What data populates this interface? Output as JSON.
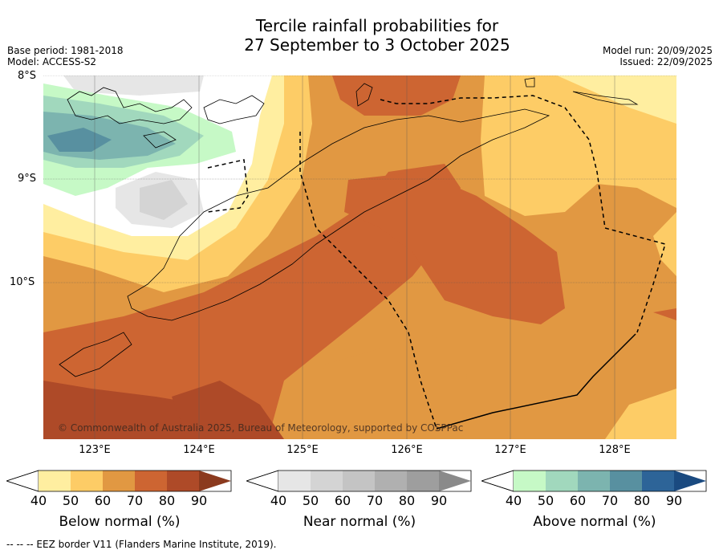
{
  "title": {
    "line1": "Tercile rainfall probabilities for",
    "line2": "27 September to 3 October 2025"
  },
  "meta": {
    "base_period": "Base period: 1981-2018",
    "model": "Model: ACCESS-S2",
    "model_run": "Model run: 20/09/2025",
    "issued": "Issued: 22/09/2025"
  },
  "map": {
    "lat_labels": [
      "8°S",
      "9°S",
      "10°S"
    ],
    "lon_labels": [
      "123°E",
      "124°E",
      "125°E",
      "126°E",
      "127°E",
      "128°E"
    ],
    "copyright": "© Commonwealth of Australia 2025, Bureau of Meteorology, supported by COSPPac"
  },
  "colorbars": {
    "tick_labels": [
      "40",
      "50",
      "60",
      "70",
      "80",
      "90"
    ],
    "below": {
      "title": "Below normal (%)",
      "colors": [
        "#ffeea0",
        "#fdcc66",
        "#e19842",
        "#cd6532",
        "#ae4a28",
        "#8b3a1e"
      ]
    },
    "near": {
      "title": "Near normal (%)",
      "colors": [
        "#e6e6e6",
        "#d4d4d4",
        "#c4c4c4",
        "#b0b0b0",
        "#9e9e9e",
        "#8a8a8a"
      ]
    },
    "above": {
      "title": "Above normal (%)",
      "colors": [
        "#c6f9c6",
        "#a1d8bd",
        "#7cb4af",
        "#5890a0",
        "#2d6498",
        "#1a4a80"
      ]
    }
  },
  "footer": {
    "eez_note": "--  --  -- EEZ border V11 (Flanders Marine Institute, 2019)."
  }
}
